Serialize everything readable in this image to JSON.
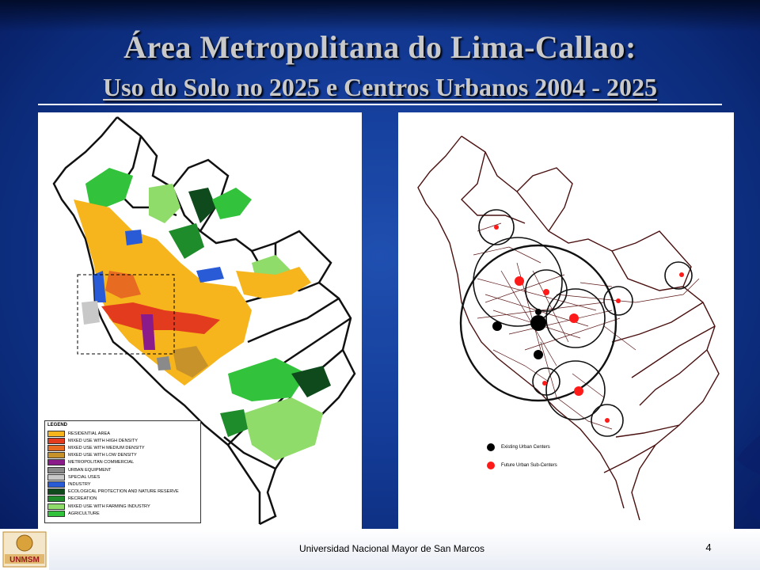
{
  "slide": {
    "title_line1": "Área Metropolitana do Lima-Callao:",
    "title_line2": "Uso do Solo no 2025 e Centros Urbanos 2004 - 2025",
    "footer": "Universidad Nacional Mayor de San Marcos",
    "page_number": "4",
    "logo_text": "UNMSM"
  },
  "left_map": {
    "legend_title": "LEGEND",
    "legend_items": [
      {
        "label": "RESIDENTIAL AREA",
        "color": "#f6b51c"
      },
      {
        "label": "MIXED USE WITH HIGH DENSITY",
        "color": "#e33b1e"
      },
      {
        "label": "MIXED USE WITH MEDIUM DENSITY",
        "color": "#e86b22"
      },
      {
        "label": "MIXED USE WITH LOW DENSITY",
        "color": "#c8922b"
      },
      {
        "label": "METROPOLITAN COMMERCIAL",
        "color": "#8b1a8a"
      },
      {
        "label": "URBAN EQUIPMENT",
        "color": "#8a8a8a"
      },
      {
        "label": "SPECIAL USES",
        "color": "#c8c8c8"
      },
      {
        "label": "INDUSTRY",
        "color": "#2a5bd7"
      },
      {
        "label": "ECOLOGICAL PROTECTION AND NATURE RESERVE",
        "color": "#0f4a1c"
      },
      {
        "label": "RECREATION",
        "color": "#1e8c2a"
      },
      {
        "label": "MIXED USE WITH FARMING INDUSTRY",
        "color": "#8fdc6a"
      },
      {
        "label": "AGRICULTURE",
        "color": "#33c23c"
      }
    ]
  },
  "right_map": {
    "legend_items": [
      {
        "label": "Existing Urban Centers",
        "color": "#000000"
      },
      {
        "label": "Future Urban Sub-Centers",
        "color": "#ff1a1a"
      }
    ]
  }
}
